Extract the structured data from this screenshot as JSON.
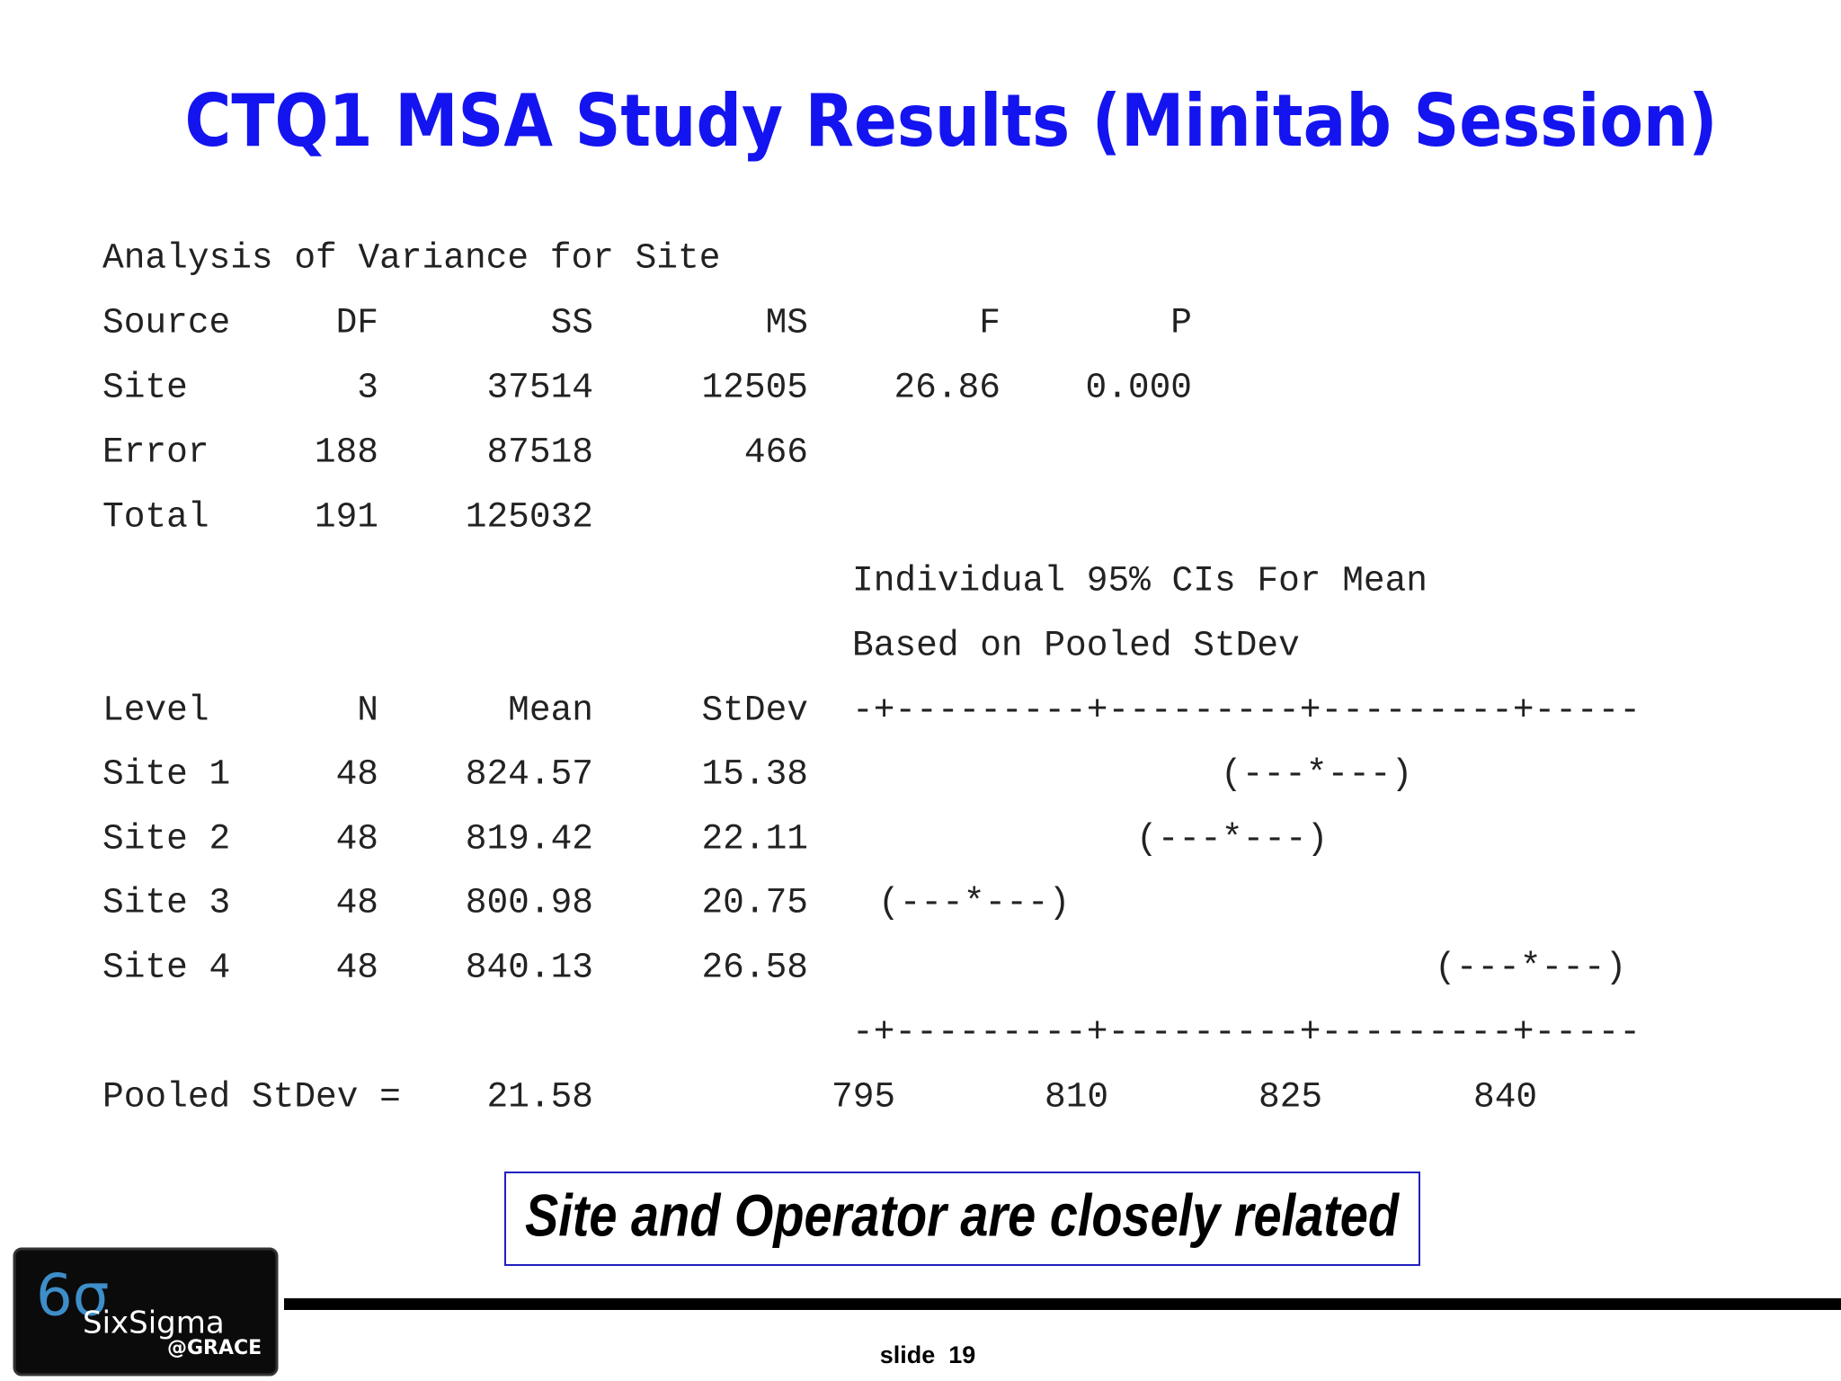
{
  "title": "CTQ1 MSA Study Results (Minitab Session)",
  "anova": {
    "heading": "Analysis of Variance for Site",
    "columns": [
      "Source",
      "DF",
      "SS",
      "MS",
      "F",
      "P"
    ],
    "rows": [
      [
        "Site",
        "3",
        "37514",
        "12505",
        "26.86",
        "0.000"
      ],
      [
        "Error",
        "188",
        "87518",
        "466"
      ],
      [
        "Total",
        "191",
        "125032"
      ]
    ]
  },
  "means": {
    "ci_heading": [
      "Individual 95% CIs For Mean",
      "Based on Pooled StDev"
    ],
    "columns": [
      "Level",
      "N",
      "Mean",
      "StDev"
    ],
    "axis_line": "-+---------+---------+---------+-----",
    "rows": [
      {
        "cells": [
          "Site 1",
          "48",
          "824.57",
          "15.38"
        ],
        "ci": "(---*---)"
      },
      {
        "cells": [
          "Site 2",
          "48",
          "819.42",
          "22.11"
        ],
        "ci": "(---*---)"
      },
      {
        "cells": [
          "Site 3",
          "48",
          "800.98",
          "20.75"
        ],
        "ci": "(---*---)"
      },
      {
        "cells": [
          "Site 4",
          "48",
          "840.13",
          "26.58"
        ],
        "ci": "(---*---)"
      }
    ],
    "pooled_label": "Pooled StDev =",
    "pooled_value": "21.58",
    "axis_ticks": [
      "795",
      "810",
      "825",
      "840"
    ]
  },
  "callout": "Site and Operator are closely related",
  "logo": {
    "symbol": "6σ",
    "name": "SixSigma",
    "org": "@GRACE"
  },
  "footer": "slide  19"
}
